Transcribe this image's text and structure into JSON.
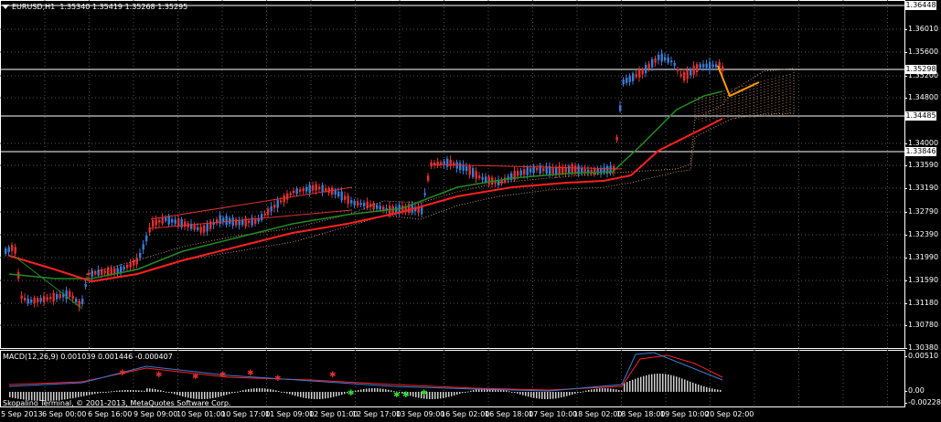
{
  "header": {
    "symbol": "EURUSD,H1",
    "ohlc": "1.35340 1.35419 1.35268 1.35295"
  },
  "price_axis": {
    "ticks": [
      "1.36010",
      "1.35600",
      "1.35200",
      "1.34800",
      "1.34000",
      "1.33590",
      "1.33190",
      "1.32790",
      "1.32390",
      "1.31990",
      "1.31590",
      "1.31180",
      "1.30780",
      "1.30380"
    ],
    "highlighted": [
      "1.36448",
      "1.35298",
      "1.34485",
      "1.33846"
    ]
  },
  "macd": {
    "label": "MACD(12,26,9) 0.001039 0.001446 -0.000407",
    "ticks": [
      "0.00510",
      "0.00",
      "-0.00228"
    ]
  },
  "time_axis": {
    "ticks": [
      "5 Sep 2013",
      "6 Sep 00:00",
      "6 Sep 16:00",
      "9 Sep 09:00",
      "10 Sep 01:00",
      "10 Sep 17:00",
      "11 Sep 09:00",
      "12 Sep 01:00",
      "12 Sep 17:00",
      "13 Sep 09:00",
      "16 Sep 02:00",
      "16 Sep 18:00",
      "17 Sep 10:00",
      "18 Sep 02:00",
      "18 Sep 18:00",
      "19 Sep 10:00",
      "20 Sep 02:00"
    ]
  },
  "footer": {
    "copyright": "Skopalino Terminal, © 2001-2013, MetaQuotes Software Corp."
  },
  "colors": {
    "background": "#000000",
    "bull": "#3a7bd5",
    "bear": "#e03030",
    "ma_fast": "#228b22",
    "ma_slow": "#ff2020",
    "cloud": "#e8a07a",
    "zigzag": "#ff9900",
    "signal": "#ff2020",
    "macd_line": "#3a7bd5"
  }
}
